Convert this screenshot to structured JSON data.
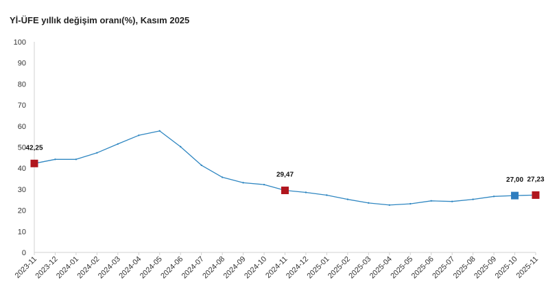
{
  "chart_data": {
    "type": "line",
    "title": "Yİ-ÜFE yıllık değişim oranı(%), Kasım 2025",
    "xlabel": "",
    "ylabel": "",
    "ylim": [
      0,
      100
    ],
    "yticks": [
      0,
      10,
      20,
      30,
      40,
      50,
      60,
      70,
      80,
      90,
      100
    ],
    "categories": [
      "2023-11",
      "2023-12",
      "2024-01",
      "2024-02",
      "2024-03",
      "2024-04",
      "2024-05",
      "2024-06",
      "2024-07",
      "2024-08",
      "2024-09",
      "2024-10",
      "2024-11",
      "2024-12",
      "2025-01",
      "2025-02",
      "2025-03",
      "2025-04",
      "2025-05",
      "2025-06",
      "2025-07",
      "2025-08",
      "2025-09",
      "2025-10",
      "2025-11"
    ],
    "series": [
      {
        "values": [
          42.25,
          44.2,
          44.2,
          47.3,
          51.5,
          55.6,
          57.7,
          50.2,
          41.4,
          35.7,
          33.1,
          32.2,
          29.47,
          28.5,
          27.2,
          25.2,
          23.5,
          22.5,
          23.1,
          24.5,
          24.2,
          25.2,
          26.6,
          27.0,
          27.23
        ],
        "color": "#2e86c1"
      }
    ],
    "markers": [
      {
        "index": 0,
        "label": "42,25",
        "color": "#b0161e"
      },
      {
        "index": 12,
        "label": "29,47",
        "color": "#b0161e"
      },
      {
        "index": 23,
        "label": "27,00",
        "color": "#2e7dbf"
      },
      {
        "index": 24,
        "label": "27,23",
        "color": "#b0161e"
      }
    ],
    "grid": false,
    "legend": "none"
  }
}
